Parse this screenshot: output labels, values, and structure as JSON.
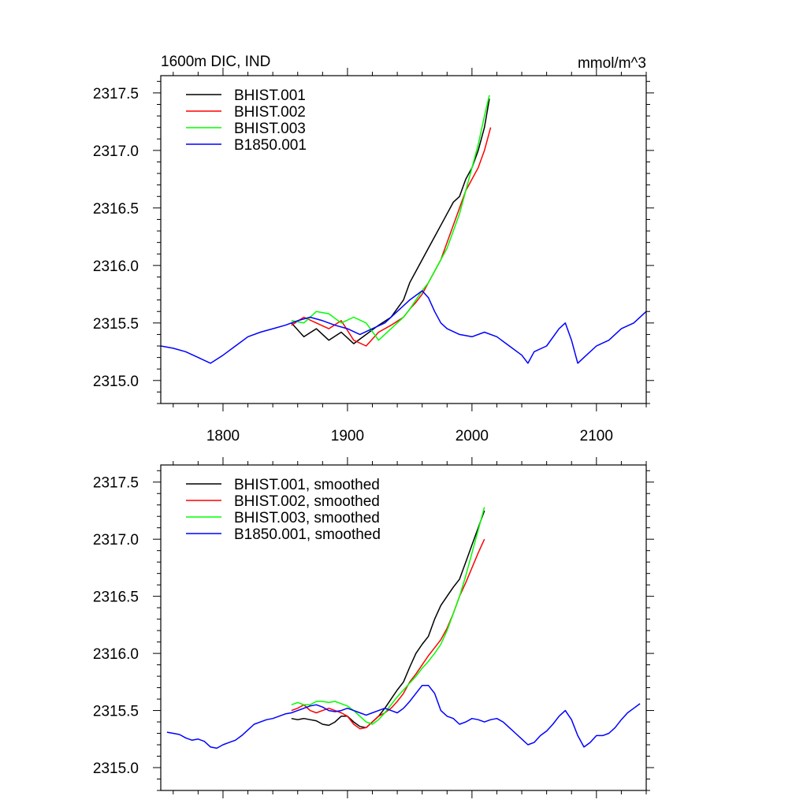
{
  "chart_data": [
    {
      "type": "line",
      "title": "1600m DIC, IND",
      "units": "mmol/m^3",
      "xlim": [
        1750,
        2140
      ],
      "ylim": [
        2314.8,
        2317.65
      ],
      "x_ticks": [
        1800,
        1900,
        2000,
        2100
      ],
      "x_tick_labels": [
        "1800",
        "1900",
        "2000",
        "2100"
      ],
      "y_ticks": [
        2315.0,
        2315.5,
        2316.0,
        2316.5,
        2317.0,
        2317.5
      ],
      "y_tick_labels": [
        "2315.0",
        "2315.5",
        "2316.0",
        "2316.5",
        "2317.0",
        "2317.5"
      ],
      "legend_position": "top-left",
      "grid": false,
      "series": [
        {
          "name": "BHIST.001",
          "color": "#000000",
          "x": [
            1855,
            1865,
            1875,
            1885,
            1895,
            1905,
            1915,
            1925,
            1935,
            1945,
            1950,
            1955,
            1960,
            1965,
            1970,
            1975,
            1980,
            1985,
            1990,
            1995,
            2000,
            2005,
            2010,
            2014
          ],
          "y": [
            2315.5,
            2315.38,
            2315.45,
            2315.35,
            2315.42,
            2315.32,
            2315.4,
            2315.48,
            2315.55,
            2315.7,
            2315.85,
            2315.95,
            2316.05,
            2316.15,
            2316.25,
            2316.35,
            2316.45,
            2316.55,
            2316.6,
            2316.75,
            2316.85,
            2317.0,
            2317.2,
            2317.45
          ]
        },
        {
          "name": "BHIST.002",
          "color": "#ff0000",
          "x": [
            1855,
            1865,
            1875,
            1885,
            1895,
            1905,
            1915,
            1925,
            1935,
            1945,
            1950,
            1955,
            1960,
            1965,
            1970,
            1975,
            1980,
            1985,
            1990,
            1995,
            2000,
            2005,
            2010,
            2015
          ],
          "y": [
            2315.48,
            2315.55,
            2315.5,
            2315.45,
            2315.52,
            2315.35,
            2315.3,
            2315.42,
            2315.48,
            2315.55,
            2315.62,
            2315.68,
            2315.75,
            2315.85,
            2315.95,
            2316.05,
            2316.2,
            2316.35,
            2316.5,
            2316.65,
            2316.75,
            2316.85,
            2317.0,
            2317.2
          ]
        },
        {
          "name": "BHIST.003",
          "color": "#00ff00",
          "x": [
            1855,
            1865,
            1875,
            1885,
            1895,
            1905,
            1915,
            1925,
            1935,
            1945,
            1950,
            1955,
            1960,
            1965,
            1970,
            1975,
            1980,
            1985,
            1990,
            1995,
            2000,
            2005,
            2010,
            2014
          ],
          "y": [
            2315.52,
            2315.5,
            2315.6,
            2315.58,
            2315.5,
            2315.55,
            2315.5,
            2315.35,
            2315.45,
            2315.55,
            2315.62,
            2315.7,
            2315.78,
            2315.85,
            2315.95,
            2316.05,
            2316.15,
            2316.3,
            2316.45,
            2316.65,
            2316.85,
            2317.05,
            2317.3,
            2317.48
          ]
        },
        {
          "name": "B1850.001",
          "color": "#0000ff",
          "x": [
            1750,
            1760,
            1770,
            1780,
            1790,
            1800,
            1810,
            1820,
            1830,
            1840,
            1850,
            1860,
            1870,
            1880,
            1890,
            1900,
            1910,
            1920,
            1930,
            1940,
            1950,
            1960,
            1965,
            1970,
            1975,
            1980,
            1990,
            2000,
            2010,
            2020,
            2030,
            2040,
            2045,
            2050,
            2060,
            2070,
            2075,
            2080,
            2085,
            2090,
            2100,
            2110,
            2120,
            2130,
            2140
          ],
          "y": [
            2315.3,
            2315.28,
            2315.25,
            2315.2,
            2315.15,
            2315.22,
            2315.3,
            2315.38,
            2315.42,
            2315.45,
            2315.48,
            2315.52,
            2315.55,
            2315.52,
            2315.48,
            2315.45,
            2315.4,
            2315.45,
            2315.5,
            2315.6,
            2315.7,
            2315.78,
            2315.72,
            2315.6,
            2315.5,
            2315.45,
            2315.4,
            2315.38,
            2315.42,
            2315.38,
            2315.3,
            2315.22,
            2315.15,
            2315.25,
            2315.3,
            2315.45,
            2315.5,
            2315.35,
            2315.15,
            2315.2,
            2315.3,
            2315.35,
            2315.45,
            2315.5,
            2315.6
          ]
        }
      ]
    },
    {
      "type": "line",
      "xlim": [
        1750,
        2140
      ],
      "ylim": [
        2314.8,
        2317.65
      ],
      "x_ticks": [
        1800,
        1900,
        2000,
        2100
      ],
      "y_ticks": [
        2315.0,
        2315.5,
        2316.0,
        2316.5,
        2317.0,
        2317.5
      ],
      "y_tick_labels": [
        "2315.0",
        "2315.5",
        "2316.0",
        "2316.5",
        "2317.0",
        "2317.5"
      ],
      "legend_position": "top-left",
      "grid": false,
      "series": [
        {
          "name": "BHIST.001, smoothed",
          "color": "#000000",
          "x": [
            1855,
            1860,
            1865,
            1870,
            1875,
            1880,
            1885,
            1890,
            1895,
            1900,
            1905,
            1910,
            1915,
            1920,
            1925,
            1930,
            1935,
            1940,
            1945,
            1950,
            1955,
            1960,
            1965,
            1970,
            1975,
            1980,
            1985,
            1990,
            1995,
            2000,
            2005,
            2010
          ],
          "y": [
            2315.43,
            2315.42,
            2315.43,
            2315.42,
            2315.41,
            2315.38,
            2315.37,
            2315.4,
            2315.45,
            2315.45,
            2315.4,
            2315.36,
            2315.35,
            2315.4,
            2315.45,
            2315.52,
            2315.6,
            2315.68,
            2315.75,
            2315.88,
            2316.0,
            2316.08,
            2316.15,
            2316.3,
            2316.42,
            2316.5,
            2316.58,
            2316.65,
            2316.8,
            2316.95,
            2317.1,
            2317.25
          ]
        },
        {
          "name": "BHIST.002, smoothed",
          "color": "#ff0000",
          "x": [
            1855,
            1860,
            1865,
            1870,
            1875,
            1880,
            1885,
            1890,
            1895,
            1900,
            1905,
            1910,
            1915,
            1920,
            1925,
            1930,
            1935,
            1940,
            1945,
            1950,
            1955,
            1960,
            1965,
            1970,
            1975,
            1980,
            1985,
            1990,
            1995,
            2000,
            2005,
            2010
          ],
          "y": [
            2315.5,
            2315.52,
            2315.55,
            2315.5,
            2315.48,
            2315.5,
            2315.52,
            2315.5,
            2315.48,
            2315.45,
            2315.38,
            2315.34,
            2315.35,
            2315.4,
            2315.45,
            2315.48,
            2315.52,
            2315.58,
            2315.65,
            2315.75,
            2315.82,
            2315.9,
            2315.98,
            2316.05,
            2316.12,
            2316.22,
            2316.35,
            2316.5,
            2316.62,
            2316.75,
            2316.88,
            2317.0
          ]
        },
        {
          "name": "BHIST.003, smoothed",
          "color": "#00ff00",
          "x": [
            1855,
            1860,
            1865,
            1870,
            1875,
            1880,
            1885,
            1890,
            1895,
            1900,
            1905,
            1910,
            1915,
            1920,
            1925,
            1930,
            1935,
            1940,
            1945,
            1950,
            1955,
            1960,
            1965,
            1970,
            1975,
            1980,
            1985,
            1990,
            1995,
            2000,
            2005,
            2010
          ],
          "y": [
            2315.55,
            2315.57,
            2315.55,
            2315.55,
            2315.58,
            2315.58,
            2315.57,
            2315.58,
            2315.56,
            2315.54,
            2315.5,
            2315.45,
            2315.4,
            2315.38,
            2315.42,
            2315.48,
            2315.55,
            2315.62,
            2315.68,
            2315.74,
            2315.8,
            2315.87,
            2315.93,
            2316.0,
            2316.08,
            2316.2,
            2316.35,
            2316.5,
            2316.68,
            2316.88,
            2317.08,
            2317.28
          ]
        },
        {
          "name": "B1850.001, smoothed",
          "color": "#0000ff",
          "x": [
            1755,
            1760,
            1765,
            1770,
            1775,
            1780,
            1785,
            1790,
            1795,
            1800,
            1805,
            1810,
            1815,
            1820,
            1825,
            1830,
            1835,
            1840,
            1845,
            1850,
            1855,
            1860,
            1865,
            1870,
            1875,
            1880,
            1885,
            1890,
            1895,
            1900,
            1905,
            1910,
            1915,
            1920,
            1925,
            1930,
            1935,
            1940,
            1945,
            1950,
            1955,
            1960,
            1965,
            1970,
            1975,
            1980,
            1985,
            1990,
            1995,
            2000,
            2005,
            2010,
            2015,
            2020,
            2025,
            2030,
            2035,
            2040,
            2045,
            2050,
            2055,
            2060,
            2065,
            2070,
            2075,
            2080,
            2085,
            2090,
            2095,
            2100,
            2105,
            2110,
            2115,
            2120,
            2125,
            2130,
            2135
          ],
          "y": [
            2315.31,
            2315.3,
            2315.29,
            2315.26,
            2315.24,
            2315.25,
            2315.23,
            2315.18,
            2315.17,
            2315.2,
            2315.22,
            2315.24,
            2315.28,
            2315.33,
            2315.38,
            2315.4,
            2315.42,
            2315.43,
            2315.45,
            2315.47,
            2315.48,
            2315.5,
            2315.52,
            2315.54,
            2315.55,
            2315.53,
            2315.5,
            2315.49,
            2315.5,
            2315.52,
            2315.5,
            2315.48,
            2315.46,
            2315.48,
            2315.5,
            2315.52,
            2315.5,
            2315.48,
            2315.52,
            2315.58,
            2315.65,
            2315.72,
            2315.72,
            2315.65,
            2315.5,
            2315.45,
            2315.43,
            2315.38,
            2315.4,
            2315.43,
            2315.42,
            2315.4,
            2315.42,
            2315.43,
            2315.4,
            2315.35,
            2315.3,
            2315.25,
            2315.2,
            2315.22,
            2315.28,
            2315.32,
            2315.38,
            2315.45,
            2315.5,
            2315.42,
            2315.28,
            2315.18,
            2315.22,
            2315.28,
            2315.28,
            2315.3,
            2315.35,
            2315.42,
            2315.48,
            2315.52,
            2315.56
          ]
        }
      ]
    }
  ]
}
